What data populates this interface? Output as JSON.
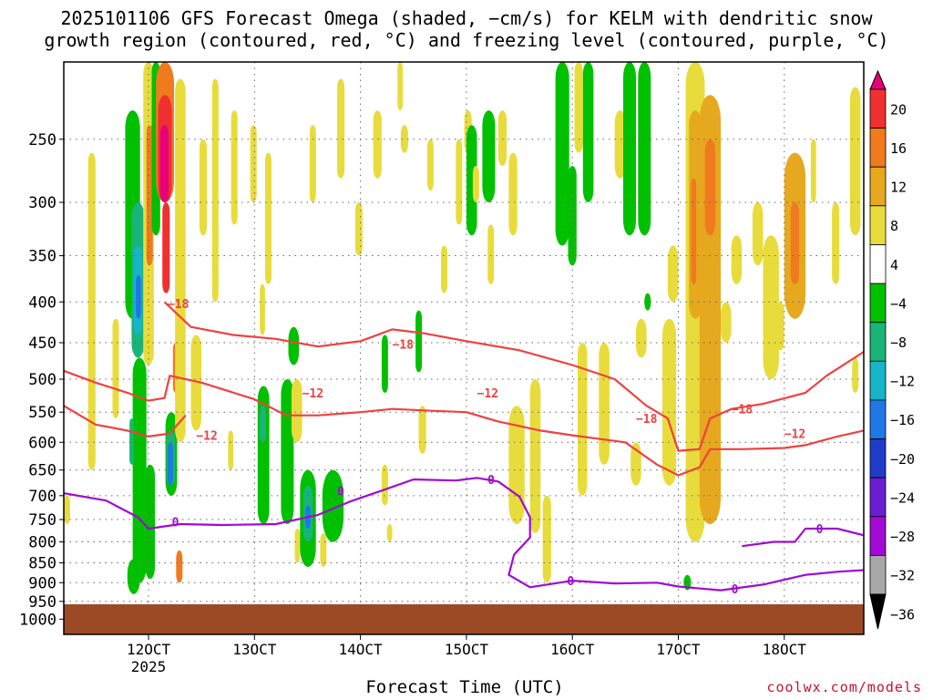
{
  "title_line1": "2025101106 GFS Forecast Omega (shaded, −cm/s) for KELM with dendritic snow",
  "title_line2": "growth region (contoured, red, °C) and freezing level (contoured, purple, °C)",
  "credit": "coolwx.com/models",
  "chart_data": {
    "type": "heatmap",
    "xlabel": "Forecast Time (UTC)",
    "ylabel": "",
    "x_ticks": [
      "12OCT",
      "13OCT",
      "14OCT",
      "15OCT",
      "16OCT",
      "17OCT",
      "18OCT"
    ],
    "x_subtick": "2025",
    "x_range_days": [
      11.2,
      18.75
    ],
    "y_ticks": [
      250,
      300,
      350,
      400,
      450,
      500,
      550,
      600,
      650,
      700,
      750,
      800,
      850,
      900,
      950,
      1000
    ],
    "y_range_hpa": [
      200,
      1045
    ],
    "y_scale": "log-pressure",
    "grid": true,
    "colorbar": {
      "labels": [
        "20",
        "16",
        "12",
        "8",
        "4",
        "−4",
        "−8",
        "−12",
        "−16",
        "−20",
        "−24",
        "−28",
        "−32",
        "−36"
      ],
      "colors": [
        "#e8007a",
        "#f03030",
        "#f07a1e",
        "#e6a81e",
        "#e8dc3c",
        "#ffffff",
        "#00c000",
        "#18b478",
        "#18b4c8",
        "#1e78e6",
        "#1e3cc8",
        "#6a1ed2",
        "#a00ad2",
        "#a8a8a8",
        "#000000"
      ]
    },
    "contour_labels": {
      "dgz_red": [
        "−18",
        "−12",
        "−18",
        "−12",
        "−18",
        "−12",
        "−18",
        "−12"
      ],
      "freezing_purple": [
        "0",
        "0",
        "0",
        "0",
        "0",
        "0"
      ]
    },
    "series": [
      {
        "color": "#f04040",
        "points": [
          [
            11.2,
            488
          ],
          [
            11.5,
            505
          ],
          [
            11.8,
            520
          ],
          [
            12.0,
            532
          ],
          [
            12.15,
            528
          ],
          [
            12.2,
            495
          ],
          [
            12.5,
            505
          ],
          [
            13.0,
            530
          ],
          [
            13.3,
            555
          ],
          [
            13.6,
            555
          ],
          [
            14.0,
            550
          ],
          [
            14.3,
            545
          ],
          [
            14.7,
            548
          ],
          [
            15.0,
            550
          ],
          [
            15.3,
            565
          ],
          [
            15.7,
            580
          ],
          [
            16.0,
            588
          ],
          [
            16.5,
            600
          ],
          [
            16.8,
            640
          ],
          [
            17.0,
            660
          ],
          [
            17.2,
            645
          ],
          [
            17.3,
            612
          ],
          [
            17.6,
            612
          ],
          [
            18.0,
            610
          ],
          [
            18.2,
            605
          ],
          [
            18.5,
            590
          ],
          [
            18.75,
            580
          ]
        ]
      },
      {
        "color": "#f04040",
        "points": [
          [
            12.15,
            400
          ],
          [
            12.4,
            430
          ],
          [
            12.8,
            440
          ],
          [
            13.2,
            445
          ],
          [
            13.6,
            455
          ],
          [
            14.0,
            448
          ],
          [
            14.3,
            433
          ],
          [
            14.6,
            438
          ],
          [
            15.0,
            448
          ],
          [
            15.5,
            460
          ],
          [
            16.0,
            480
          ],
          [
            16.4,
            500
          ],
          [
            16.7,
            540
          ],
          [
            16.9,
            560
          ],
          [
            17.0,
            615
          ],
          [
            17.2,
            612
          ],
          [
            17.3,
            560
          ],
          [
            17.5,
            545
          ],
          [
            17.8,
            537
          ],
          [
            18.2,
            520
          ],
          [
            18.4,
            495
          ],
          [
            18.75,
            462
          ]
        ]
      },
      {
        "color": "#f04040",
        "points": [
          [
            11.2,
            540
          ],
          [
            11.5,
            570
          ],
          [
            11.8,
            580
          ],
          [
            12.0,
            590
          ],
          [
            12.2,
            585
          ],
          [
            12.35,
            555
          ]
        ]
      },
      {
        "color": "#a00ad2",
        "points": [
          [
            11.2,
            695
          ],
          [
            11.6,
            710
          ],
          [
            11.9,
            745
          ],
          [
            12.0,
            770
          ],
          [
            12.3,
            760
          ],
          [
            12.7,
            762
          ],
          [
            13.2,
            760
          ],
          [
            13.6,
            740
          ],
          [
            13.9,
            712
          ],
          [
            14.2,
            690
          ],
          [
            14.5,
            668
          ],
          [
            14.9,
            670
          ],
          [
            15.1,
            665
          ],
          [
            15.3,
            672
          ],
          [
            15.5,
            702
          ],
          [
            15.6,
            745
          ],
          [
            15.6,
            790
          ],
          [
            15.45,
            830
          ],
          [
            15.4,
            880
          ],
          [
            15.6,
            912
          ],
          [
            16.0,
            895
          ],
          [
            16.4,
            902
          ],
          [
            16.8,
            900
          ],
          [
            17.0,
            910
          ],
          [
            17.4,
            920
          ],
          [
            17.8,
            905
          ],
          [
            18.2,
            880
          ],
          [
            18.5,
            872
          ],
          [
            18.75,
            868
          ]
        ]
      },
      {
        "color": "#a00ad2",
        "points": [
          [
            17.6,
            810
          ],
          [
            17.9,
            800
          ],
          [
            18.1,
            800
          ],
          [
            18.2,
            770
          ],
          [
            18.5,
            770
          ],
          [
            18.75,
            785
          ]
        ]
      }
    ]
  }
}
